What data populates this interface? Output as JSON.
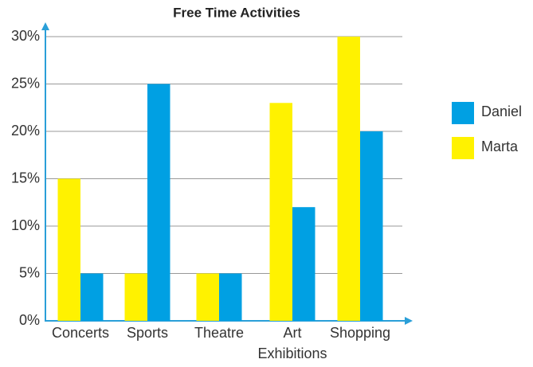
{
  "chart_data": {
    "type": "bar",
    "title": "Free Time Activities",
    "categories": [
      "Concerts",
      "Sports",
      "Theatre",
      "Art Exhibitions",
      "Shopping"
    ],
    "series": [
      {
        "name": "Marta",
        "color": "#fff200",
        "values": [
          15,
          5,
          5,
          23,
          30
        ]
      },
      {
        "name": "Daniel",
        "color": "#00a0e3",
        "values": [
          5,
          25,
          5,
          12,
          20
        ]
      }
    ],
    "ylim": [
      0,
      30
    ],
    "yticks": [
      {
        "value": 0,
        "label": "0%"
      },
      {
        "value": 5,
        "label": "5%"
      },
      {
        "value": 10,
        "label": "10%"
      },
      {
        "value": 15,
        "label": "15%"
      },
      {
        "value": 20,
        "label": "20%"
      },
      {
        "value": 25,
        "label": "25%"
      },
      {
        "value": 30,
        "label": "30%"
      }
    ],
    "grid": true,
    "legend": "right"
  }
}
